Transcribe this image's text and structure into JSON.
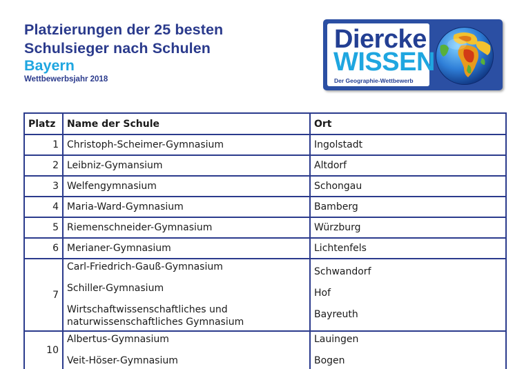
{
  "header": {
    "title_line1": "Platzierungen der 25 besten",
    "title_line2": "Schulsieger nach Schulen",
    "region": "Bayern",
    "year": "Wettbewerbsjahr 2018"
  },
  "logo": {
    "word1": "Diercke",
    "word2": "WISSEN",
    "tagline": "Der Geographie-Wettbewerb",
    "icon": "globe-icon"
  },
  "table": {
    "headers": {
      "place": "Platz",
      "name": "Name der Schule",
      "city": "Ort"
    },
    "rows": [
      {
        "place": "1",
        "name": "Christoph-Scheimer-Gymnasium",
        "city": "Ingolstadt"
      },
      {
        "place": "2",
        "name": "Leibniz-Gymansium",
        "city": "Altdorf"
      },
      {
        "place": "3",
        "name": "Welfengymnasium",
        "city": "Schongau"
      },
      {
        "place": "4",
        "name": "Maria-Ward-Gymnasium",
        "city": "Bamberg"
      },
      {
        "place": "5",
        "name": "Riemenschneider-Gymnasium",
        "city": "Würzburg"
      },
      {
        "place": "6",
        "name": "Merianer-Gymnasium",
        "city": "Lichtenfels"
      }
    ],
    "group7": {
      "place": "7",
      "names": [
        "Carl-Friedrich-Gauß-Gymnasium",
        "Schiller-Gymnasium",
        "Wirtschaftwissenschaftliches und",
        "naturwissenschaftliches Gymnasium"
      ],
      "cities": [
        "Schwandorf",
        "Hof",
        "Bayreuth"
      ]
    },
    "group10": {
      "place": "10",
      "names": [
        "Albertus-Gymnasium",
        "Veit-Höser-Gymnasium"
      ],
      "cities": [
        "Lauingen",
        "Bogen"
      ]
    }
  },
  "colors": {
    "navy": "#2a3a8c",
    "cyan": "#1fa6e0",
    "logo_blue": "#2b4fa3"
  }
}
